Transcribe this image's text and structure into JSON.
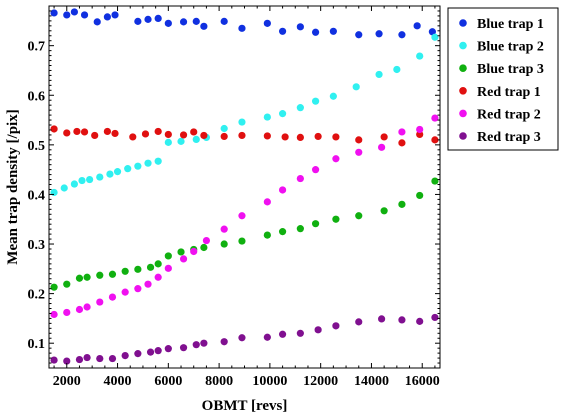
{
  "chart_data": {
    "type": "scatter",
    "xlabel": "OBMT [revs]",
    "ylabel": "Mean trap density [/pix]",
    "xlim": [
      1300,
      16700
    ],
    "ylim": [
      0.05,
      0.78
    ],
    "x_ticks": [
      2000,
      4000,
      6000,
      8000,
      10000,
      12000,
      14000,
      16000
    ],
    "y_ticks": [
      0.1,
      0.2,
      0.3,
      0.4,
      0.5,
      0.6,
      0.7
    ],
    "grid": false,
    "legend_position": "outside-right-top",
    "series": [
      {
        "name": "Blue trap 1",
        "color": "#1030e0",
        "points": [
          [
            1500,
            0.766
          ],
          [
            2000,
            0.762
          ],
          [
            2300,
            0.768
          ],
          [
            2700,
            0.762
          ],
          [
            3200,
            0.748
          ],
          [
            3600,
            0.758
          ],
          [
            3900,
            0.762
          ],
          [
            4800,
            0.749
          ],
          [
            5200,
            0.753
          ],
          [
            5600,
            0.755
          ],
          [
            6000,
            0.745
          ],
          [
            6600,
            0.748
          ],
          [
            7100,
            0.749
          ],
          [
            7400,
            0.739
          ],
          [
            8200,
            0.749
          ],
          [
            8900,
            0.735
          ],
          [
            9900,
            0.745
          ],
          [
            10500,
            0.729
          ],
          [
            11200,
            0.738
          ],
          [
            11800,
            0.727
          ],
          [
            12500,
            0.729
          ],
          [
            13500,
            0.722
          ],
          [
            14300,
            0.724
          ],
          [
            15200,
            0.722
          ],
          [
            15800,
            0.74
          ],
          [
            16400,
            0.728
          ]
        ]
      },
      {
        "name": "Blue trap 2",
        "color": "#30f0f0",
        "points": [
          [
            1500,
            0.404
          ],
          [
            1900,
            0.413
          ],
          [
            2300,
            0.421
          ],
          [
            2600,
            0.428
          ],
          [
            2900,
            0.43
          ],
          [
            3300,
            0.435
          ],
          [
            3700,
            0.441
          ],
          [
            4000,
            0.446
          ],
          [
            4400,
            0.452
          ],
          [
            4800,
            0.457
          ],
          [
            5200,
            0.463
          ],
          [
            5600,
            0.467
          ],
          [
            6000,
            0.505
          ],
          [
            6500,
            0.507
          ],
          [
            7100,
            0.511
          ],
          [
            7500,
            0.515
          ],
          [
            8200,
            0.533
          ],
          [
            8900,
            0.546
          ],
          [
            9900,
            0.556
          ],
          [
            10500,
            0.563
          ],
          [
            11200,
            0.575
          ],
          [
            11800,
            0.588
          ],
          [
            12500,
            0.598
          ],
          [
            13400,
            0.617
          ],
          [
            14300,
            0.642
          ],
          [
            15000,
            0.652
          ],
          [
            15900,
            0.679
          ],
          [
            16500,
            0.717
          ]
        ]
      },
      {
        "name": "Blue trap 3",
        "color": "#10b010",
        "points": [
          [
            1500,
            0.213
          ],
          [
            2000,
            0.219
          ],
          [
            2500,
            0.231
          ],
          [
            2800,
            0.233
          ],
          [
            3300,
            0.237
          ],
          [
            3800,
            0.239
          ],
          [
            4300,
            0.245
          ],
          [
            4800,
            0.249
          ],
          [
            5300,
            0.253
          ],
          [
            5600,
            0.26
          ],
          [
            6000,
            0.276
          ],
          [
            6500,
            0.284
          ],
          [
            7000,
            0.289
          ],
          [
            7400,
            0.293
          ],
          [
            8200,
            0.3
          ],
          [
            8900,
            0.306
          ],
          [
            9900,
            0.318
          ],
          [
            10500,
            0.325
          ],
          [
            11200,
            0.331
          ],
          [
            11800,
            0.341
          ],
          [
            12600,
            0.35
          ],
          [
            13500,
            0.357
          ],
          [
            14500,
            0.367
          ],
          [
            15200,
            0.38
          ],
          [
            15900,
            0.398
          ],
          [
            16500,
            0.427
          ]
        ]
      },
      {
        "name": "Red trap 1",
        "color": "#e01010",
        "points": [
          [
            1500,
            0.532
          ],
          [
            2000,
            0.524
          ],
          [
            2400,
            0.527
          ],
          [
            2700,
            0.526
          ],
          [
            3100,
            0.519
          ],
          [
            3600,
            0.527
          ],
          [
            3900,
            0.523
          ],
          [
            4600,
            0.516
          ],
          [
            5100,
            0.522
          ],
          [
            5600,
            0.527
          ],
          [
            6000,
            0.521
          ],
          [
            6600,
            0.52
          ],
          [
            7000,
            0.526
          ],
          [
            7400,
            0.519
          ],
          [
            8200,
            0.517
          ],
          [
            8900,
            0.519
          ],
          [
            9900,
            0.518
          ],
          [
            10600,
            0.516
          ],
          [
            11200,
            0.515
          ],
          [
            11900,
            0.517
          ],
          [
            12600,
            0.516
          ],
          [
            13500,
            0.51
          ],
          [
            14500,
            0.516
          ],
          [
            15200,
            0.504
          ],
          [
            15900,
            0.521
          ],
          [
            16500,
            0.51
          ]
        ]
      },
      {
        "name": "Red trap 2",
        "color": "#f010f0",
        "points": [
          [
            1500,
            0.158
          ],
          [
            2000,
            0.162
          ],
          [
            2500,
            0.168
          ],
          [
            2800,
            0.173
          ],
          [
            3300,
            0.183
          ],
          [
            3800,
            0.193
          ],
          [
            4300,
            0.203
          ],
          [
            4800,
            0.21
          ],
          [
            5200,
            0.219
          ],
          [
            5600,
            0.233
          ],
          [
            6000,
            0.251
          ],
          [
            6600,
            0.27
          ],
          [
            7000,
            0.285
          ],
          [
            7500,
            0.307
          ],
          [
            8200,
            0.33
          ],
          [
            8900,
            0.357
          ],
          [
            9900,
            0.385
          ],
          [
            10500,
            0.409
          ],
          [
            11200,
            0.432
          ],
          [
            11800,
            0.45
          ],
          [
            12600,
            0.472
          ],
          [
            13500,
            0.485
          ],
          [
            14400,
            0.495
          ],
          [
            15200,
            0.526
          ],
          [
            15900,
            0.531
          ],
          [
            16500,
            0.554
          ]
        ]
      },
      {
        "name": "Red trap 3",
        "color": "#801090",
        "points": [
          [
            1500,
            0.066
          ],
          [
            2000,
            0.064
          ],
          [
            2500,
            0.067
          ],
          [
            2800,
            0.071
          ],
          [
            3300,
            0.069
          ],
          [
            3800,
            0.069
          ],
          [
            4300,
            0.075
          ],
          [
            4800,
            0.079
          ],
          [
            5300,
            0.082
          ],
          [
            5600,
            0.085
          ],
          [
            6000,
            0.089
          ],
          [
            6600,
            0.091
          ],
          [
            7100,
            0.097
          ],
          [
            7400,
            0.1
          ],
          [
            8200,
            0.103
          ],
          [
            8900,
            0.111
          ],
          [
            9900,
            0.112
          ],
          [
            10500,
            0.118
          ],
          [
            11200,
            0.12
          ],
          [
            11900,
            0.127
          ],
          [
            12600,
            0.135
          ],
          [
            13500,
            0.143
          ],
          [
            14400,
            0.149
          ],
          [
            15200,
            0.147
          ],
          [
            15900,
            0.144
          ],
          [
            16500,
            0.152
          ]
        ]
      }
    ]
  }
}
